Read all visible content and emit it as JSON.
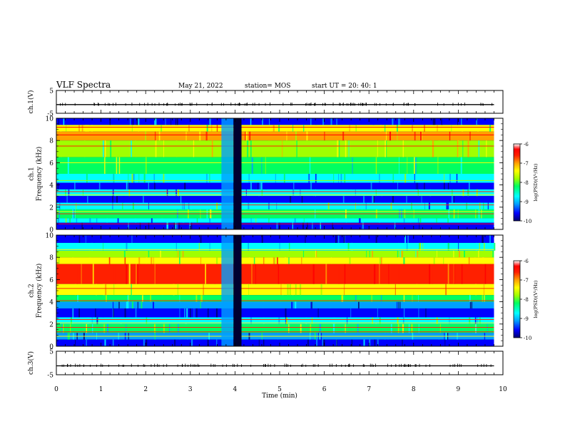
{
  "header": {
    "title": "VLF Spectra",
    "date": "May 21, 2022",
    "station": "station= MOS",
    "start": "start  UT =   20: 40: 1"
  },
  "chart_data": [
    {
      "type": "line",
      "panel": "ch1-waveform",
      "ylabel": "ch.1(V)",
      "ylim": [
        -5,
        5
      ],
      "y_ticks": [
        "5",
        "-5"
      ],
      "x": [
        0,
        1,
        2,
        3,
        4,
        5,
        6,
        7,
        8,
        9,
        9.8
      ],
      "values": [
        -1.2,
        -1.2,
        -1.2,
        -1.2,
        -1.2,
        -1.2,
        -1.2,
        -1.2,
        -1.2,
        -1.2,
        -1.2
      ]
    },
    {
      "type": "heatmap",
      "panel": "ch1-spectrogram",
      "ylabel": "ch.1\nFrequency (kHz)",
      "ylim": [
        0,
        10
      ],
      "y_ticks": [
        "0",
        "2",
        "4",
        "6",
        "8",
        "10"
      ],
      "x_range_min": [
        0,
        9.8
      ],
      "gap_min": [
        3.6,
        4.2
      ],
      "colorbar": {
        "label": "log(PSD)(V²/Hz)",
        "range": [
          -10,
          -6
        ],
        "ticks": [
          "-6",
          "-7",
          "-8",
          "-9",
          "-10"
        ],
        "colors": [
          "#00006e",
          "#0000ff",
          "#00a0ff",
          "#00ffff",
          "#00ff60",
          "#a0ff00",
          "#ffff00",
          "#ffa000",
          "#ff2000",
          "#ff0000",
          "#ffffff"
        ]
      }
    },
    {
      "type": "heatmap",
      "panel": "ch2-spectrogram",
      "ylabel": "ch.2\nFrequency (kHz)",
      "ylim": [
        0,
        10
      ],
      "y_ticks": [
        "0",
        "2",
        "4",
        "6",
        "8",
        "10"
      ],
      "x_range_min": [
        0,
        9.8
      ],
      "gap_min": [
        3.6,
        4.2
      ],
      "colorbar": {
        "label": "log(PSD)(V²/Hz)",
        "range": [
          -10,
          -6
        ],
        "ticks": [
          "-6",
          "-7",
          "-8",
          "-9",
          "-10"
        ],
        "colors": [
          "#00006e",
          "#0000ff",
          "#00a0ff",
          "#00ffff",
          "#00ff60",
          "#a0ff00",
          "#ffff00",
          "#ffa000",
          "#ff2000",
          "#ff0000",
          "#ffffff"
        ]
      }
    },
    {
      "type": "line",
      "panel": "ch3-waveform",
      "ylabel": "ch.3(V)",
      "ylim": [
        -5,
        5
      ],
      "y_ticks": [
        "5",
        "-5"
      ],
      "x": [
        0,
        1,
        2,
        3,
        4,
        5,
        6,
        7,
        8,
        9,
        9.8
      ],
      "values": [
        -1.2,
        -1.2,
        -1.2,
        -1.2,
        -1.2,
        -1.2,
        -1.2,
        -1.2,
        -1.2,
        -1.2,
        -1.2
      ],
      "xlabel": "Time  (min)",
      "xlim": [
        0,
        10
      ],
      "x_ticks": [
        "0",
        "1",
        "2",
        "3",
        "4",
        "5",
        "6",
        "7",
        "8",
        "9",
        "10"
      ]
    }
  ]
}
